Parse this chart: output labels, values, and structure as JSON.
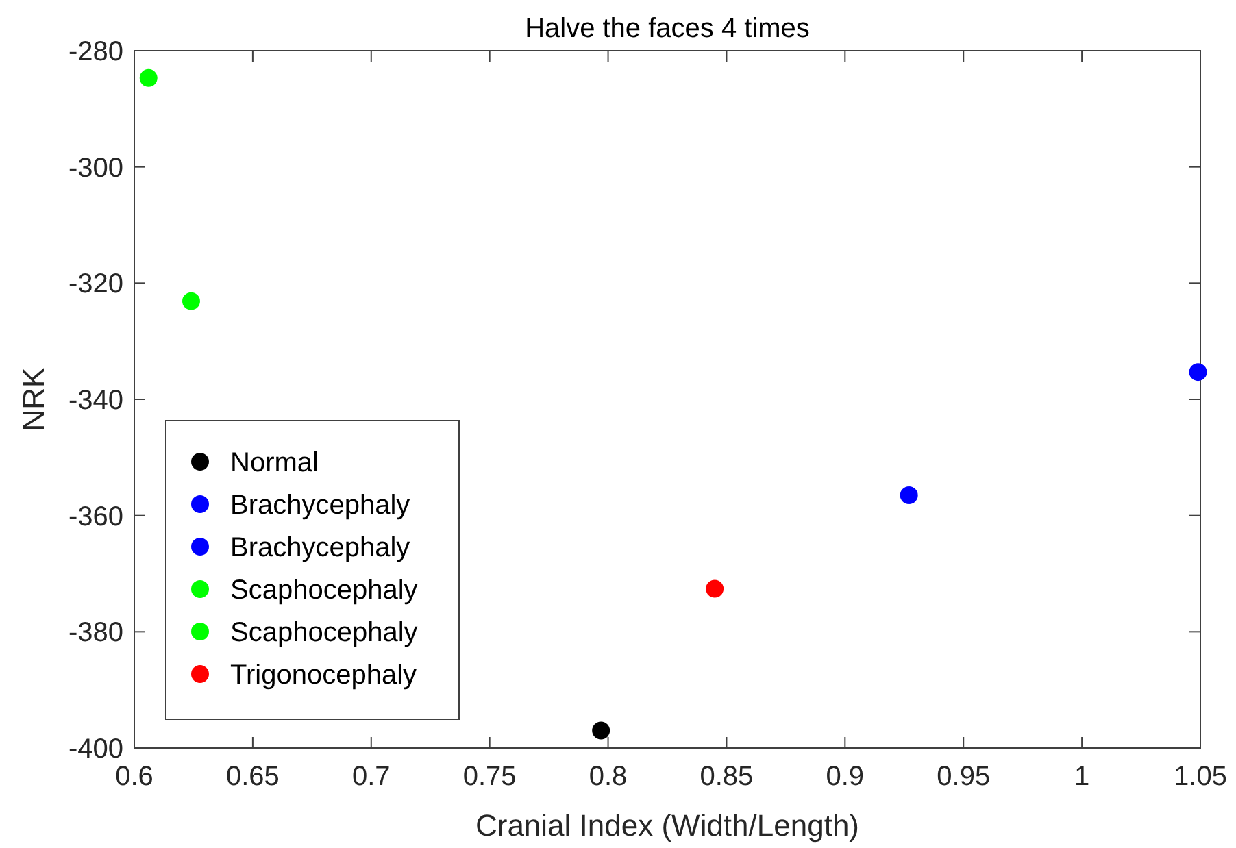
{
  "chart_data": {
    "type": "scatter",
    "title": "Halve the faces 4 times",
    "xlabel": "Cranial Index (Width/Length)",
    "ylabel": "NRK",
    "xlim": [
      0.6,
      1.05
    ],
    "xticks": [
      0.6,
      0.65,
      0.7,
      0.75,
      0.8,
      0.85,
      0.9,
      0.95,
      {
        "value": 1,
        "label": "1"
      },
      1.05
    ],
    "ylim": [
      -400,
      -280
    ],
    "yticks": [
      -400,
      -380,
      -360,
      -340,
      -320,
      -300,
      -280
    ],
    "marker": "circle",
    "grid": false,
    "legend": "bottom left",
    "series": [
      {
        "name": "Normal",
        "color": "#000000",
        "x": [
          0.797
        ],
        "values": [
          -397
        ]
      },
      {
        "name": "Brachycephaly",
        "color": "#0000ff",
        "x": [
          0.927
        ],
        "values": [
          -356.5
        ]
      },
      {
        "name": "Brachycephaly",
        "color": "#0000ff",
        "x": [
          1.049
        ],
        "values": [
          -335.3
        ]
      },
      {
        "name": "Scaphocephaly",
        "color": "#00ff00",
        "x": [
          0.606
        ],
        "values": [
          -284.7
        ]
      },
      {
        "name": "Scaphocephaly",
        "color": "#00ff00",
        "x": [
          0.624
        ],
        "values": [
          -323.1
        ]
      },
      {
        "name": "Trigonocephaly",
        "color": "#ff0000",
        "x": [
          0.845
        ],
        "values": [
          -372.6
        ]
      }
    ]
  }
}
